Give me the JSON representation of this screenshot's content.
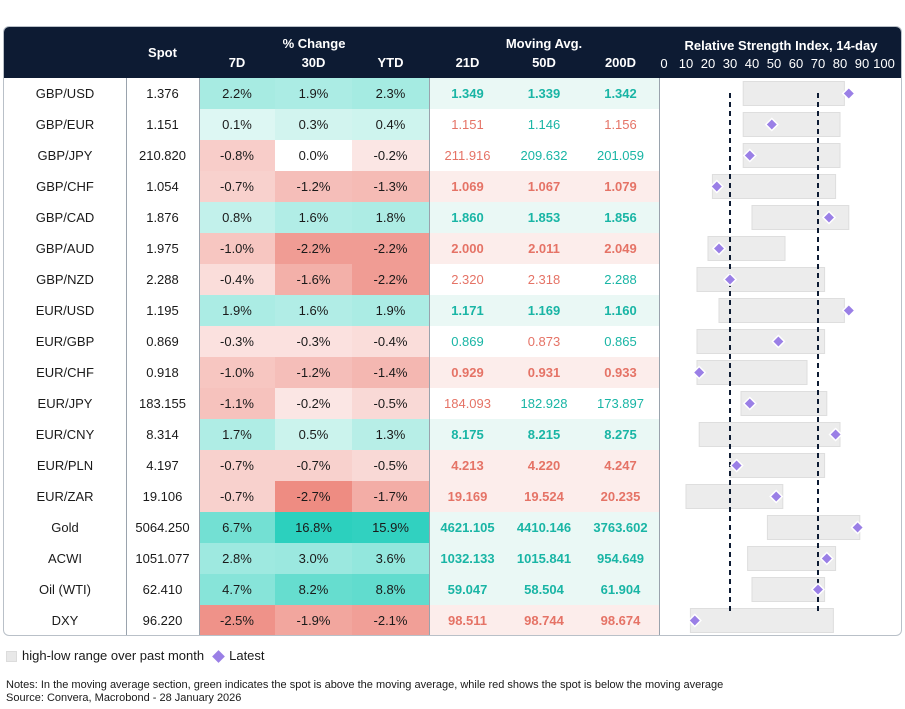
{
  "header": {
    "spot": "Spot",
    "pct_change": "% Change",
    "moving_avg": "Moving Avg.",
    "rsi_title": "Relative Strength Index, 14-day",
    "cols": [
      "7D",
      "30D",
      "YTD",
      "21D",
      "50D",
      "200D"
    ],
    "rsi_ticks": [
      "0",
      "10",
      "20",
      "30",
      "40",
      "50",
      "60",
      "70",
      "80",
      "90",
      "100"
    ]
  },
  "colors": {
    "green_text": "#19b5a5",
    "red_text": "#e57366",
    "header_bg": "#0d1b33",
    "range_bar": "#ececec",
    "latest_marker": "#9a7fe6"
  },
  "chart_data": {
    "type": "table",
    "title": "Relative Strength Index, 14-day",
    "rsi_axis": [
      0,
      100
    ],
    "rsi_reference_lines": [
      30,
      70
    ],
    "rows": [
      {
        "name": "GBP/USD",
        "spot": "1.376",
        "d7": "2.2%",
        "d30": "1.9%",
        "ytd": "2.3%",
        "ma21": "1.349",
        "ma50": "1.339",
        "ma200": "1.342",
        "c7": 2.2,
        "c30": 1.9,
        "cy": 2.3,
        "m21": "g",
        "m50": "g",
        "m200": "g",
        "rsi": 84,
        "lo": 36,
        "hi": 82
      },
      {
        "name": "GBP/EUR",
        "spot": "1.151",
        "d7": "0.1%",
        "d30": "0.3%",
        "ytd": "0.4%",
        "ma21": "1.151",
        "ma50": "1.146",
        "ma200": "1.156",
        "c7": 0.1,
        "c30": 0.3,
        "cy": 0.4,
        "m21": "r",
        "m50": "g",
        "m200": "r",
        "rsi": 49,
        "lo": 36,
        "hi": 80
      },
      {
        "name": "GBP/JPY",
        "spot": "210.820",
        "d7": "-0.8%",
        "d30": "0.0%",
        "ytd": "-0.2%",
        "ma21": "211.916",
        "ma50": "209.632",
        "ma200": "201.059",
        "c7": -0.8,
        "c30": 0.0,
        "cy": -0.2,
        "m21": "r",
        "m50": "g",
        "m200": "g",
        "rsi": 39,
        "lo": 36,
        "hi": 80
      },
      {
        "name": "GBP/CHF",
        "spot": "1.054",
        "d7": "-0.7%",
        "d30": "-1.2%",
        "ytd": "-1.3%",
        "ma21": "1.069",
        "ma50": "1.067",
        "ma200": "1.079",
        "c7": -0.7,
        "c30": -1.2,
        "cy": -1.3,
        "m21": "rb",
        "m50": "rb",
        "m200": "rb",
        "rsi": 24,
        "lo": 22,
        "hi": 78
      },
      {
        "name": "GBP/CAD",
        "spot": "1.876",
        "d7": "0.8%",
        "d30": "1.6%",
        "ytd": "1.8%",
        "ma21": "1.860",
        "ma50": "1.853",
        "ma200": "1.856",
        "c7": 0.8,
        "c30": 1.6,
        "cy": 1.8,
        "m21": "g",
        "m50": "g",
        "m200": "g",
        "rsi": 75,
        "lo": 40,
        "hi": 84
      },
      {
        "name": "GBP/AUD",
        "spot": "1.975",
        "d7": "-1.0%",
        "d30": "-2.2%",
        "ytd": "-2.2%",
        "ma21": "2.000",
        "ma50": "2.011",
        "ma200": "2.049",
        "c7": -1.0,
        "c30": -2.2,
        "cy": -2.2,
        "m21": "rb",
        "m50": "rb",
        "m200": "rb",
        "rsi": 25,
        "lo": 20,
        "hi": 55
      },
      {
        "name": "GBP/NZD",
        "spot": "2.288",
        "d7": "-0.4%",
        "d30": "-1.6%",
        "ytd": "-2.2%",
        "ma21": "2.320",
        "ma50": "2.318",
        "ma200": "2.288",
        "c7": -0.4,
        "c30": -1.6,
        "cy": -2.2,
        "m21": "r",
        "m50": "r",
        "m200": "g",
        "rsi": 30,
        "lo": 15,
        "hi": 73
      },
      {
        "name": "EUR/USD",
        "spot": "1.195",
        "d7": "1.9%",
        "d30": "1.6%",
        "ytd": "1.9%",
        "ma21": "1.171",
        "ma50": "1.169",
        "ma200": "1.160",
        "c7": 1.9,
        "c30": 1.6,
        "cy": 1.9,
        "m21": "g",
        "m50": "g",
        "m200": "g",
        "rsi": 84,
        "lo": 25,
        "hi": 82
      },
      {
        "name": "EUR/GBP",
        "spot": "0.869",
        "d7": "-0.3%",
        "d30": "-0.3%",
        "ytd": "-0.4%",
        "ma21": "0.869",
        "ma50": "0.873",
        "ma200": "0.865",
        "c7": -0.3,
        "c30": -0.3,
        "cy": -0.4,
        "m21": "g",
        "m50": "r",
        "m200": "g",
        "rsi": 52,
        "lo": 15,
        "hi": 73
      },
      {
        "name": "EUR/CHF",
        "spot": "0.918",
        "d7": "-1.0%",
        "d30": "-1.2%",
        "ytd": "-1.4%",
        "ma21": "0.929",
        "ma50": "0.931",
        "ma200": "0.933",
        "c7": -1.0,
        "c30": -1.2,
        "cy": -1.4,
        "m21": "rb",
        "m50": "rb",
        "m200": "rb",
        "rsi": 16,
        "lo": 15,
        "hi": 65
      },
      {
        "name": "EUR/JPY",
        "spot": "183.155",
        "d7": "-1.1%",
        "d30": "-0.2%",
        "ytd": "-0.5%",
        "ma21": "184.093",
        "ma50": "182.928",
        "ma200": "173.897",
        "c7": -1.1,
        "c30": -0.2,
        "cy": -0.5,
        "m21": "r",
        "m50": "g",
        "m200": "g",
        "rsi": 39,
        "lo": 35,
        "hi": 74
      },
      {
        "name": "EUR/CNY",
        "spot": "8.314",
        "d7": "1.7%",
        "d30": "0.5%",
        "ytd": "1.3%",
        "ma21": "8.175",
        "ma50": "8.215",
        "ma200": "8.275",
        "c7": 1.7,
        "c30": 0.5,
        "cy": 1.3,
        "m21": "g",
        "m50": "g",
        "m200": "g",
        "rsi": 78,
        "lo": 16,
        "hi": 80
      },
      {
        "name": "EUR/PLN",
        "spot": "4.197",
        "d7": "-0.7%",
        "d30": "-0.7%",
        "ytd": "-0.5%",
        "ma21": "4.213",
        "ma50": "4.220",
        "ma200": "4.247",
        "c7": -0.7,
        "c30": -0.7,
        "cy": -0.5,
        "m21": "rb",
        "m50": "rb",
        "m200": "rb",
        "rsi": 33,
        "lo": 30,
        "hi": 73
      },
      {
        "name": "EUR/ZAR",
        "spot": "19.106",
        "d7": "-0.7%",
        "d30": "-2.7%",
        "ytd": "-1.7%",
        "ma21": "19.169",
        "ma50": "19.524",
        "ma200": "20.235",
        "c7": -0.7,
        "c30": -2.7,
        "cy": -1.7,
        "m21": "rb",
        "m50": "rb",
        "m200": "rb",
        "rsi": 51,
        "lo": 10,
        "hi": 54
      },
      {
        "name": "Gold",
        "spot": "5064.250",
        "d7": "6.7%",
        "d30": "16.8%",
        "ytd": "15.9%",
        "ma21": "4621.105",
        "ma50": "4410.146",
        "ma200": "3763.602",
        "c7": 6.7,
        "c30": 16.8,
        "cy": 15.9,
        "m21": "g",
        "m50": "g",
        "m200": "g",
        "rsi": 88,
        "lo": 47,
        "hi": 89
      },
      {
        "name": "ACWI",
        "spot": "1051.077",
        "d7": "2.8%",
        "d30": "3.0%",
        "ytd": "3.6%",
        "ma21": "1032.133",
        "ma50": "1015.841",
        "ma200": "954.649",
        "c7": 2.8,
        "c30": 3.0,
        "cy": 3.6,
        "m21": "g",
        "m50": "g",
        "m200": "g",
        "rsi": 74,
        "lo": 38,
        "hi": 78
      },
      {
        "name": "Oil (WTI)",
        "spot": "62.410",
        "d7": "4.7%",
        "d30": "8.2%",
        "ytd": "8.8%",
        "ma21": "59.047",
        "ma50": "58.504",
        "ma200": "61.904",
        "c7": 4.7,
        "c30": 8.2,
        "cy": 8.8,
        "m21": "g",
        "m50": "g",
        "m200": "g",
        "rsi": 70,
        "lo": 40,
        "hi": 73
      },
      {
        "name": "DXY",
        "spot": "96.220",
        "d7": "-2.5%",
        "d30": "-1.9%",
        "ytd": "-2.1%",
        "ma21": "98.511",
        "ma50": "98.744",
        "ma200": "98.674",
        "c7": -2.5,
        "c30": -1.9,
        "cy": -2.1,
        "m21": "rb",
        "m50": "rb",
        "m200": "rb",
        "rsi": 14,
        "lo": 12,
        "hi": 77
      }
    ]
  },
  "legend": {
    "range_label": "high-low range over past month",
    "latest_label": "Latest"
  },
  "notes": {
    "line1": "Notes: In the moving average section, green indicates the spot is above the moving average, while red shows the spot is below the moving average",
    "line2": "Source: Convera, Macrobond - 28 January 2026"
  }
}
